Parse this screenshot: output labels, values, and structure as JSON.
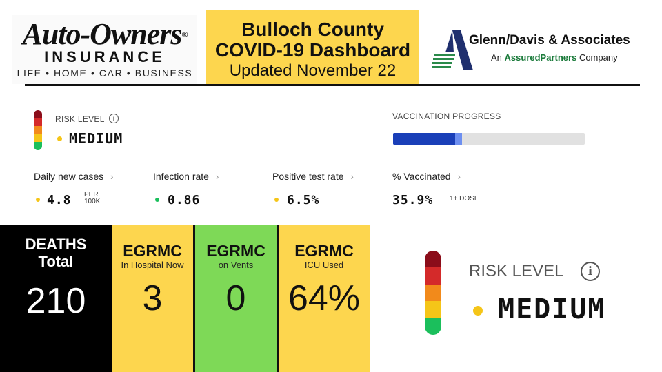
{
  "header": {
    "left_logo": {
      "wordmark": "Auto-Owners",
      "reg_mark": "®",
      "line2": "INSURANCE",
      "tagline": "LIFE • HOME • CAR • BUSINESS"
    },
    "title": {
      "line1": "Bulloch County",
      "line2": "COVID-19 Dashboard",
      "line3": "Updated November 22"
    },
    "right_logo": {
      "name": "Glenn/Davis & Associates",
      "sub_prefix": "An",
      "sub_brand": "AssuredPartners",
      "sub_suffix": "Company"
    }
  },
  "dashboard": {
    "risk": {
      "label": "RISK LEVEL",
      "info_icon": "info-icon",
      "value": "MEDIUM",
      "dot_color": "#f5c518"
    },
    "vaccination": {
      "label": "VACCINATION PROGRESS",
      "progress_one_dose": 0.359,
      "progress_full": 0.325
    },
    "metrics": [
      {
        "label": "Daily new cases",
        "value": "4.8",
        "unit_line1": "PER",
        "unit_line2": "100K",
        "dot_color": "#f5c518"
      },
      {
        "label": "Infection rate",
        "value": "0.86",
        "dot_color": "#1bbf5c"
      },
      {
        "label": "Positive test rate",
        "value": "6.5%",
        "dot_color": "#f5c518"
      },
      {
        "label": "% Vaccinated",
        "value": "35.9%",
        "unit": "1+ DOSE"
      }
    ],
    "chevron": "›"
  },
  "tiles": {
    "deaths": {
      "line1": "DEATHS",
      "line2": "Total",
      "value": "210"
    },
    "hospital": {
      "name": "EGRMC",
      "sub": "In Hospital Now",
      "value": "3"
    },
    "vents": {
      "name": "EGRMC",
      "sub": "on Vents",
      "value": "0"
    },
    "icu": {
      "name": "EGRMC",
      "sub": "ICU Used",
      "value": "64%"
    }
  },
  "risk_big": {
    "label": "RISK LEVEL",
    "value": "MEDIUM"
  },
  "colors": {
    "yellow": "#fdd64e",
    "green_tile": "#7ed957",
    "black_tile": "#000000",
    "vax_dark": "#1a3fb8",
    "vax_light": "#6d8ff0"
  }
}
